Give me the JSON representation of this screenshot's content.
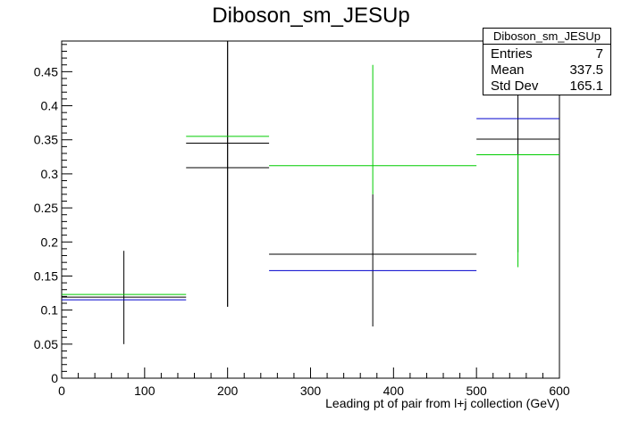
{
  "chart_data": {
    "type": "scatter",
    "title": "Diboson_sm_JESUp",
    "xlabel": "Leading pt of pair from l+j collection (GeV)",
    "ylabel": "",
    "xlim": [
      0,
      600
    ],
    "ylim": [
      0,
      0.495
    ],
    "xticks": [
      0,
      100,
      200,
      300,
      400,
      500,
      600
    ],
    "xtick_labels": [
      "0",
      "100",
      "200",
      "300",
      "400",
      "500",
      "600"
    ],
    "yticks": [
      0,
      0.05,
      0.1,
      0.15,
      0.2,
      0.25,
      0.3,
      0.35,
      0.4,
      0.45
    ],
    "ytick_labels": [
      "0",
      "0.05",
      "0.1",
      "0.15",
      "0.2",
      "0.25",
      "0.3",
      "0.35",
      "0.4",
      "0.45"
    ],
    "grid": false,
    "series": [
      {
        "color": "#000000",
        "points": [
          {
            "x": 75,
            "xlow": 0,
            "xhigh": 150,
            "y": 0.119,
            "ylow": 0.05,
            "yhigh": 0.187
          },
          {
            "x": 200,
            "xlow": 150,
            "xhigh": 250,
            "y": 0.345,
            "ylow": 0.105,
            "yhigh": 0.495
          },
          {
            "x": 200,
            "xlow": 150,
            "xhigh": 250,
            "y": 0.309,
            "ylow": 0.105,
            "yhigh": 0.495
          },
          {
            "x": 375,
            "xlow": 250,
            "xhigh": 500,
            "y": 0.182,
            "ylow": 0.076,
            "yhigh": 0.27
          },
          {
            "x": 550,
            "xlow": 500,
            "xhigh": 600,
            "y": 0.351,
            "ylow": 0.185,
            "yhigh": 0.495
          }
        ]
      },
      {
        "color": "#00cc00",
        "points": [
          {
            "x": 75,
            "xlow": 0,
            "xhigh": 150,
            "y": 0.123,
            "ylow": 0.123,
            "yhigh": 0.123
          },
          {
            "x": 200,
            "xlow": 150,
            "xhigh": 250,
            "y": 0.355,
            "ylow": 0.355,
            "yhigh": 0.355
          },
          {
            "x": 375,
            "xlow": 250,
            "xhigh": 500,
            "y": 0.312,
            "ylow": 0.27,
            "yhigh": 0.46
          },
          {
            "x": 550,
            "xlow": 500,
            "xhigh": 600,
            "y": 0.328,
            "ylow": 0.163,
            "yhigh": 0.328
          }
        ]
      },
      {
        "color": "#0000cc",
        "points": [
          {
            "x": 75,
            "xlow": 0,
            "xhigh": 150,
            "y": 0.115,
            "ylow": 0.115,
            "yhigh": 0.115
          },
          {
            "x": 375,
            "xlow": 250,
            "xhigh": 500,
            "y": 0.158,
            "ylow": 0.158,
            "yhigh": 0.158
          },
          {
            "x": 550,
            "xlow": 500,
            "xhigh": 600,
            "y": 0.381,
            "ylow": 0.381,
            "yhigh": 0.381
          }
        ]
      }
    ],
    "stats": {
      "name": "Diboson_sm_JESUp",
      "rows": [
        {
          "label": "Entries",
          "value": "7"
        },
        {
          "label": "Mean",
          "value": "337.5"
        },
        {
          "label": "Std Dev",
          "value": "165.1"
        }
      ]
    }
  }
}
